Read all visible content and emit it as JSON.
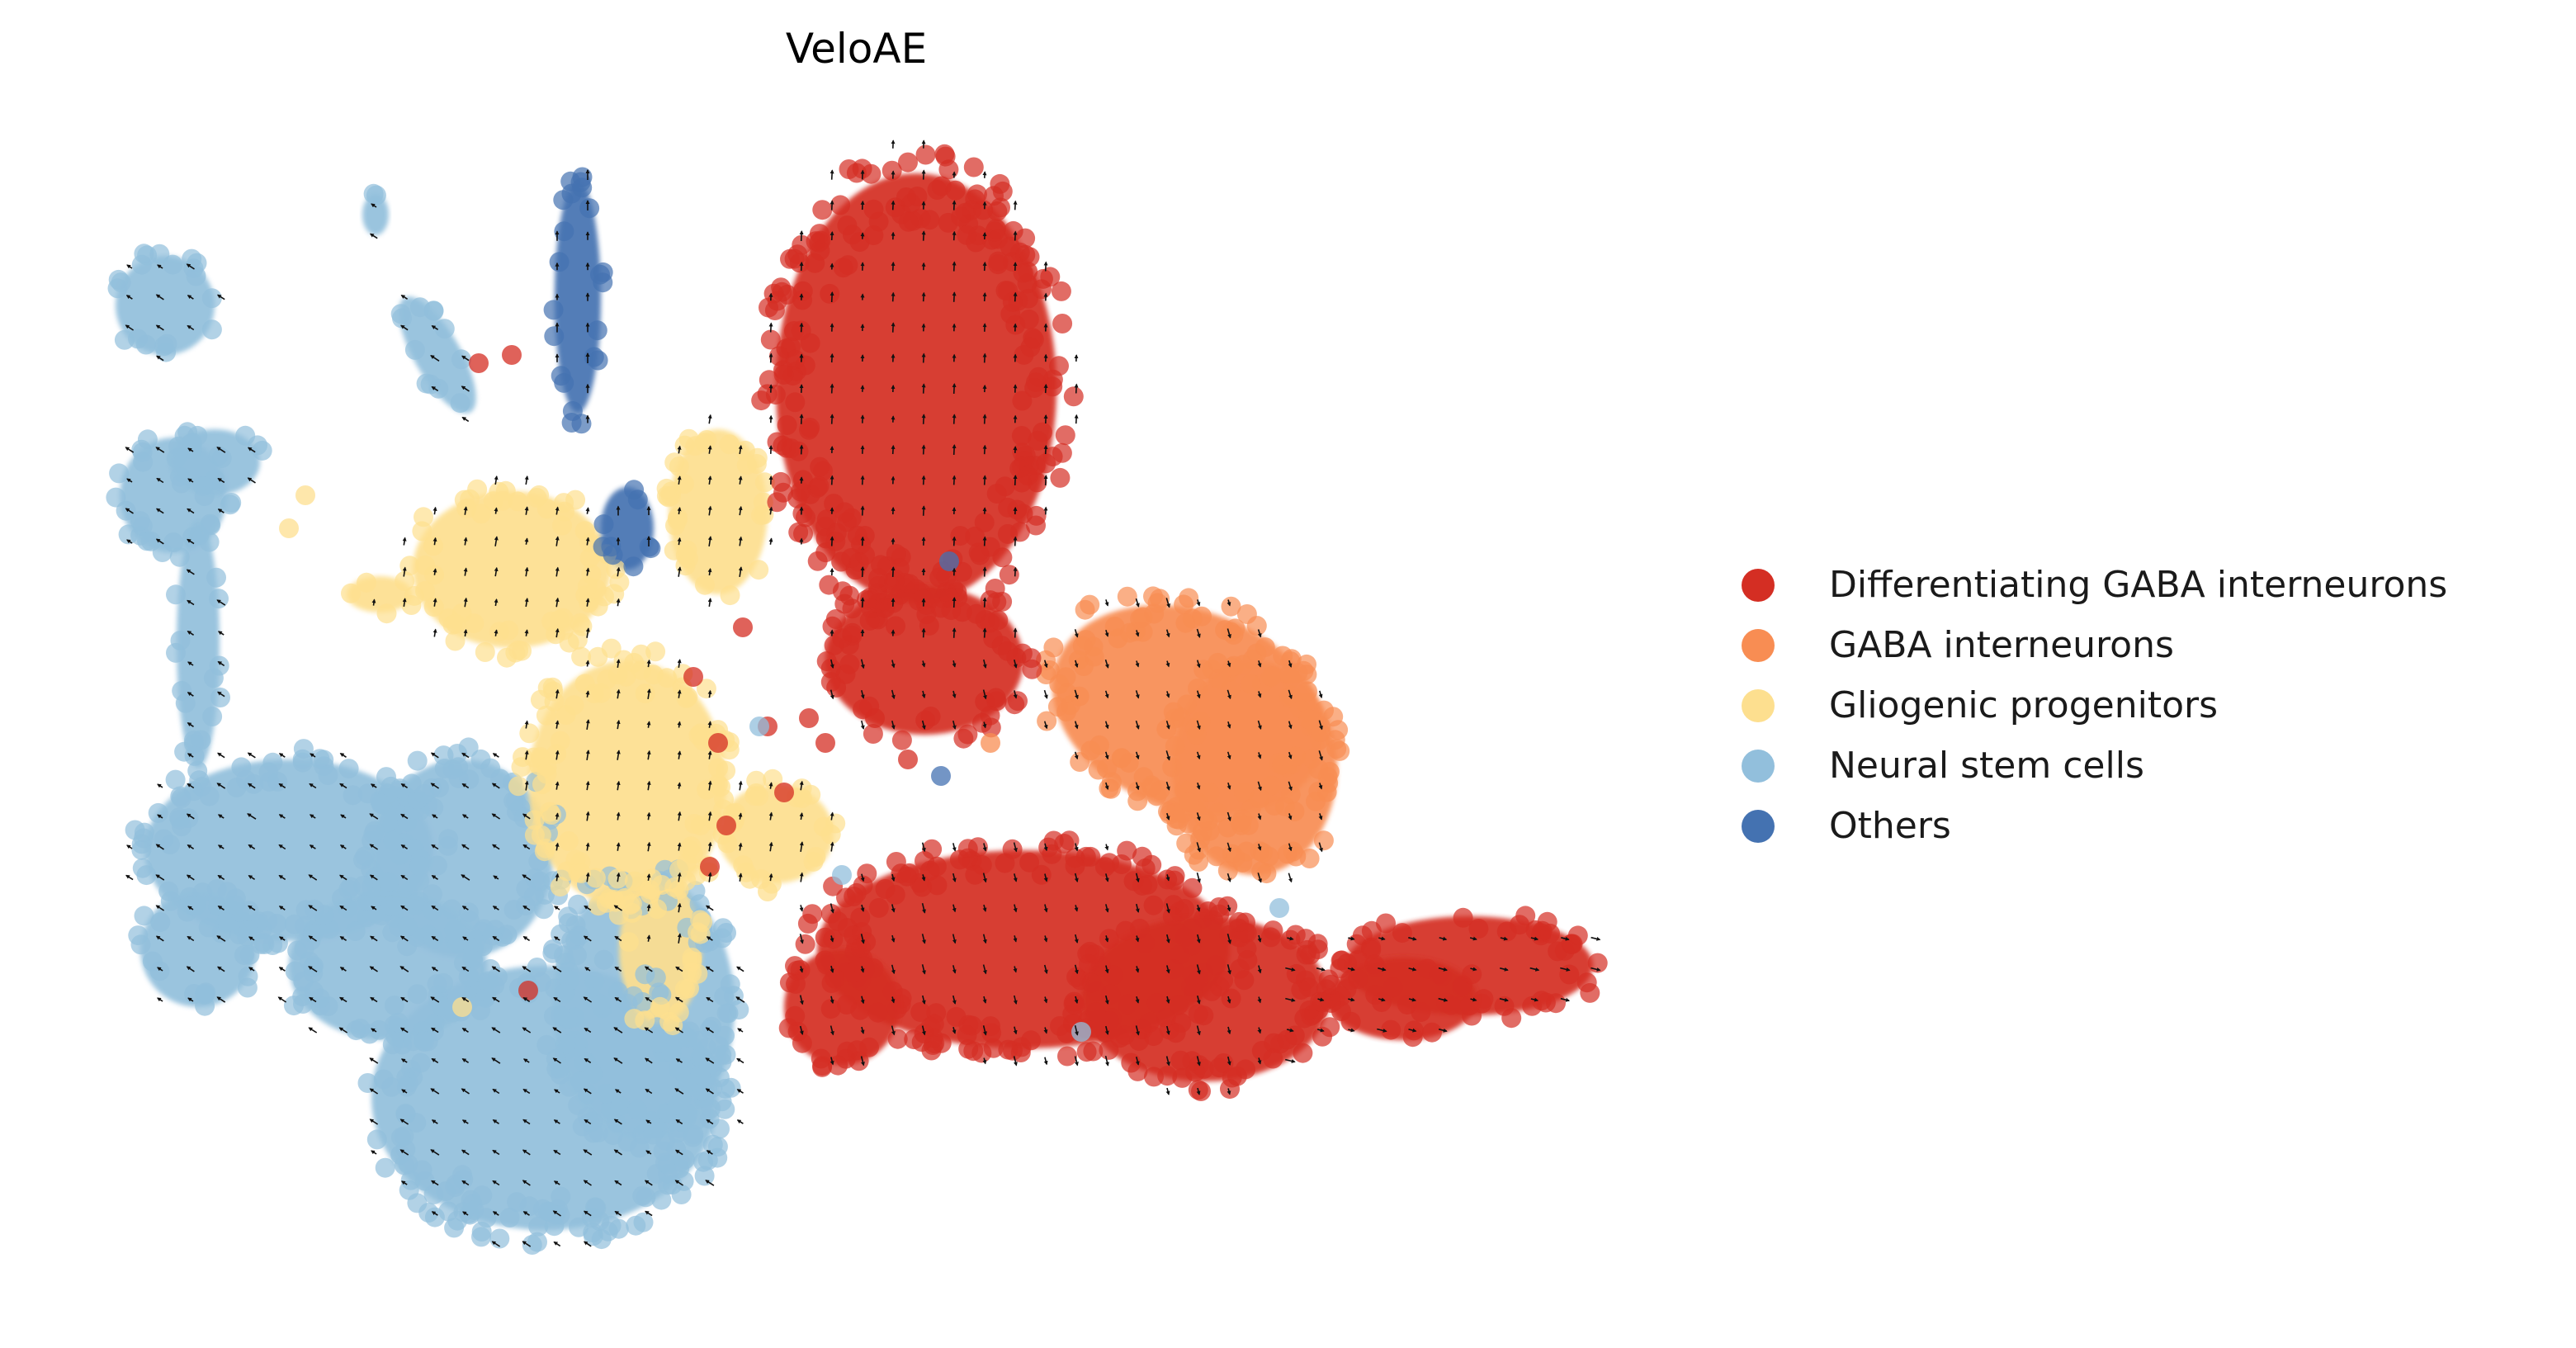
{
  "chart_data": {
    "type": "scatter",
    "title": "VeloAE",
    "xlabel": "",
    "ylabel": "",
    "axes_visible": false,
    "grid": false,
    "legend_position": "right",
    "overlay": "velocity-arrows-grid",
    "series": [
      {
        "name": "Differentiating GABA interneurons",
        "color": "#d42e23"
      },
      {
        "name": "GABA interneurons",
        "color": "#f88d53"
      },
      {
        "name": "Gliogenic progenitors",
        "color": "#fddf8f"
      },
      {
        "name": "Neural stem cells",
        "color": "#92bfdc"
      },
      {
        "name": "Others",
        "color": "#4472b1"
      }
    ]
  }
}
